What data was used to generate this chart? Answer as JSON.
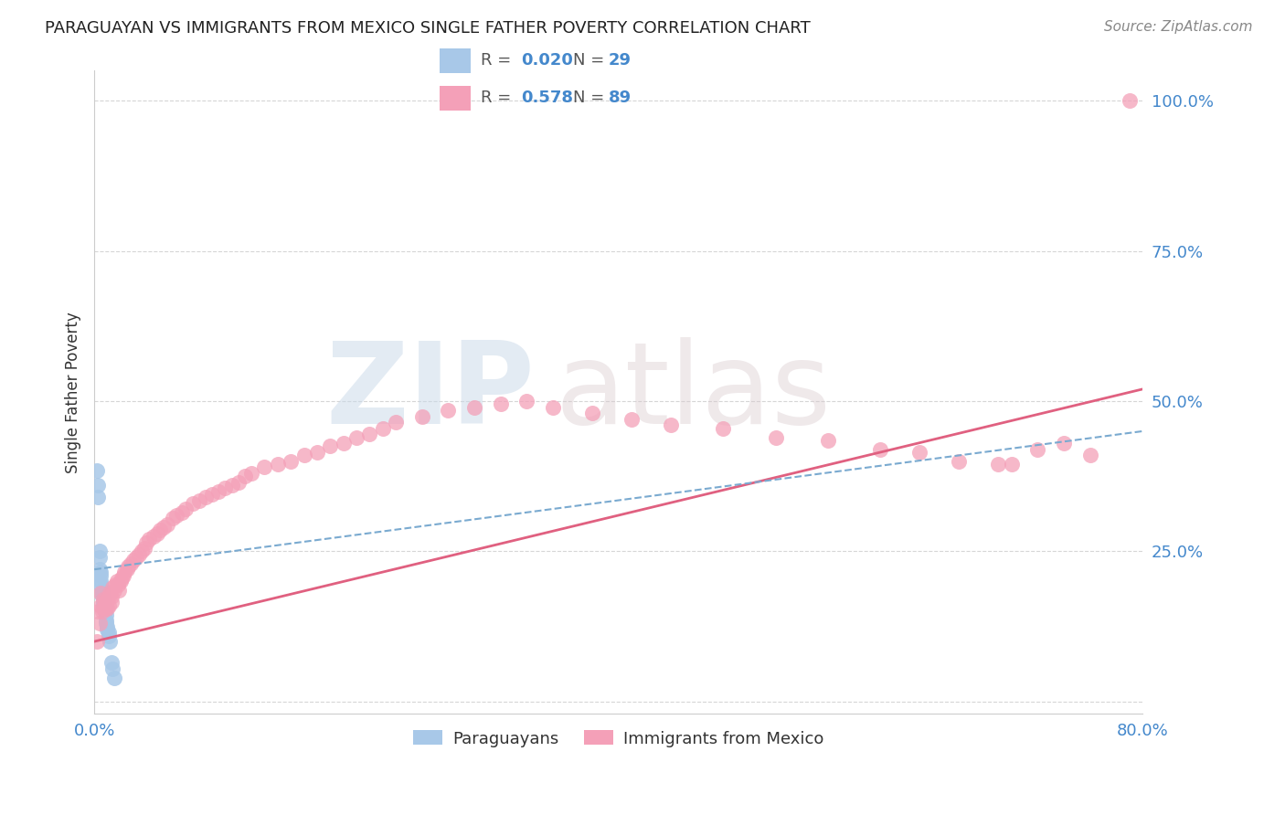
{
  "title": "PARAGUAYAN VS IMMIGRANTS FROM MEXICO SINGLE FATHER POVERTY CORRELATION CHART",
  "source": "Source: ZipAtlas.com",
  "ylabel_label": "Single Father Poverty",
  "xmin": 0.0,
  "xmax": 0.8,
  "ymin": -0.02,
  "ymax": 1.05,
  "paraguayan_color": "#a8c8e8",
  "mexico_color": "#f4a0b8",
  "trendline_paraguayan_color": "#7aaad0",
  "trendline_mexico_color": "#e06080",
  "legend_R_paraguayan": "0.020",
  "legend_N_paraguayan": "29",
  "legend_R_mexico": "0.578",
  "legend_N_mexico": "89",
  "watermark_zip": "ZIP",
  "watermark_atlas": "atlas",
  "background_color": "#ffffff",
  "grid_color": "#cccccc",
  "paraguayan_x": [
    0.002,
    0.003,
    0.003,
    0.004,
    0.004,
    0.004,
    0.005,
    0.005,
    0.005,
    0.005,
    0.006,
    0.006,
    0.006,
    0.007,
    0.007,
    0.007,
    0.008,
    0.008,
    0.009,
    0.009,
    0.009,
    0.01,
    0.01,
    0.011,
    0.011,
    0.012,
    0.013,
    0.014,
    0.015
  ],
  "paraguayan_y": [
    0.385,
    0.36,
    0.34,
    0.25,
    0.24,
    0.22,
    0.215,
    0.21,
    0.2,
    0.195,
    0.185,
    0.18,
    0.175,
    0.17,
    0.165,
    0.16,
    0.155,
    0.15,
    0.145,
    0.135,
    0.13,
    0.125,
    0.12,
    0.115,
    0.11,
    0.1,
    0.065,
    0.055,
    0.04
  ],
  "mexico_x": [
    0.002,
    0.003,
    0.004,
    0.005,
    0.005,
    0.006,
    0.007,
    0.007,
    0.008,
    0.008,
    0.009,
    0.01,
    0.01,
    0.011,
    0.011,
    0.012,
    0.013,
    0.013,
    0.014,
    0.015,
    0.016,
    0.017,
    0.018,
    0.019,
    0.02,
    0.021,
    0.022,
    0.023,
    0.025,
    0.026,
    0.028,
    0.03,
    0.032,
    0.034,
    0.036,
    0.038,
    0.04,
    0.042,
    0.045,
    0.048,
    0.05,
    0.053,
    0.056,
    0.06,
    0.063,
    0.067,
    0.07,
    0.075,
    0.08,
    0.085,
    0.09,
    0.095,
    0.1,
    0.105,
    0.11,
    0.115,
    0.12,
    0.13,
    0.14,
    0.15,
    0.16,
    0.17,
    0.18,
    0.19,
    0.2,
    0.21,
    0.22,
    0.23,
    0.25,
    0.27,
    0.29,
    0.31,
    0.33,
    0.35,
    0.38,
    0.41,
    0.44,
    0.48,
    0.52,
    0.56,
    0.6,
    0.63,
    0.66,
    0.69,
    0.7,
    0.72,
    0.74,
    0.76,
    0.79
  ],
  "mexico_y": [
    0.1,
    0.15,
    0.13,
    0.18,
    0.16,
    0.15,
    0.17,
    0.155,
    0.165,
    0.155,
    0.16,
    0.17,
    0.155,
    0.175,
    0.16,
    0.18,
    0.175,
    0.165,
    0.19,
    0.185,
    0.195,
    0.2,
    0.195,
    0.185,
    0.2,
    0.205,
    0.21,
    0.215,
    0.22,
    0.225,
    0.23,
    0.235,
    0.24,
    0.245,
    0.25,
    0.255,
    0.265,
    0.27,
    0.275,
    0.28,
    0.285,
    0.29,
    0.295,
    0.305,
    0.31,
    0.315,
    0.32,
    0.33,
    0.335,
    0.34,
    0.345,
    0.35,
    0.355,
    0.36,
    0.365,
    0.375,
    0.38,
    0.39,
    0.395,
    0.4,
    0.41,
    0.415,
    0.425,
    0.43,
    0.44,
    0.445,
    0.455,
    0.465,
    0.475,
    0.485,
    0.49,
    0.495,
    0.5,
    0.49,
    0.48,
    0.47,
    0.46,
    0.455,
    0.44,
    0.435,
    0.42,
    0.415,
    0.4,
    0.395,
    0.395,
    0.42,
    0.43,
    0.41,
    1.0
  ],
  "trendline_mexico_x0": 0.0,
  "trendline_mexico_x1": 0.8,
  "trendline_mexico_y0": 0.1,
  "trendline_mexico_y1": 0.52,
  "trendline_py_x0": 0.0,
  "trendline_py_x1": 0.8,
  "trendline_py_y0": 0.22,
  "trendline_py_y1": 0.45
}
